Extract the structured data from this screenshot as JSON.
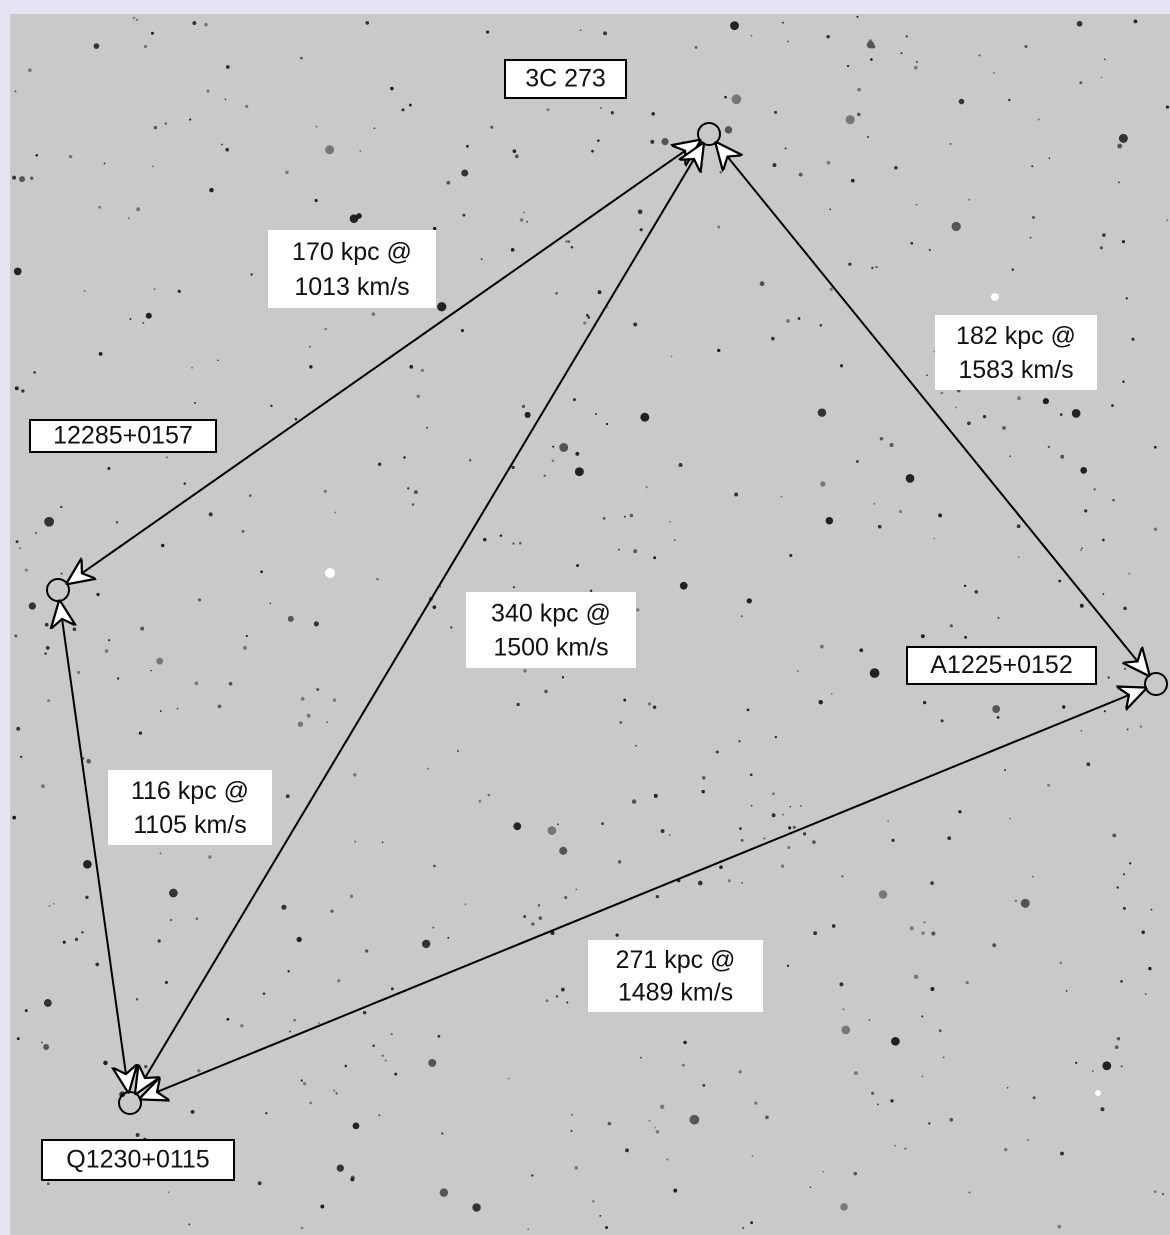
{
  "nodes": [
    {
      "label": "3C 273"
    },
    {
      "label": "12285+0157"
    },
    {
      "label": "A1225+0152"
    },
    {
      "label": "Q1230+0115"
    }
  ],
  "edges": [
    {
      "lines": [
        "170 kpc @",
        "1013 km/s"
      ]
    },
    {
      "lines": [
        "182 kpc @",
        "1583 km/s"
      ]
    },
    {
      "lines": [
        "340 kpc @",
        "1500 km/s"
      ]
    },
    {
      "lines": [
        "116 kpc @",
        "1105 km/s"
      ]
    },
    {
      "lines": [
        "271 kpc @",
        "1489 km/s"
      ]
    }
  ]
}
